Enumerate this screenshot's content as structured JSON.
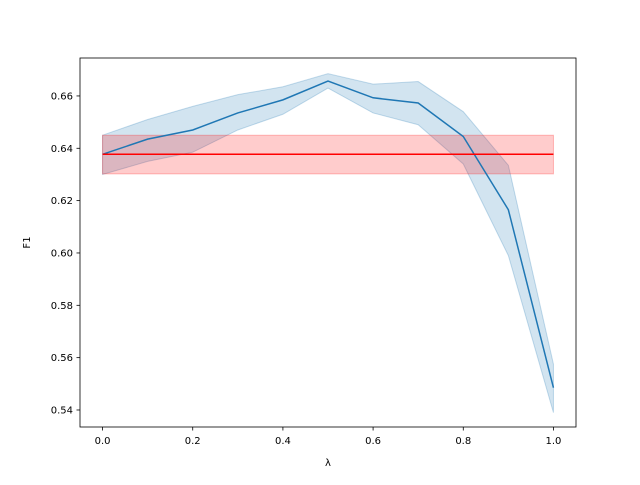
{
  "chart_data": {
    "type": "line",
    "xlabel": "λ",
    "ylabel": "F1",
    "xlim": [
      -0.05,
      1.05
    ],
    "ylim": [
      0.5335,
      0.6745
    ],
    "x_ticks": [
      0.0,
      0.2,
      0.4,
      0.6,
      0.8,
      1.0
    ],
    "y_ticks": [
      0.54,
      0.56,
      0.58,
      0.6,
      0.62,
      0.64,
      0.66
    ],
    "x_tick_labels": [
      "0.0",
      "0.2",
      "0.4",
      "0.6",
      "0.8",
      "1.0"
    ],
    "y_tick_labels": [
      "0.54",
      "0.56",
      "0.58",
      "0.60",
      "0.62",
      "0.64",
      "0.66"
    ],
    "grid": false,
    "legend": "none",
    "series": [
      {
        "color": "#1f77b4",
        "x": [
          0.0,
          0.1,
          0.2,
          0.3,
          0.4,
          0.5,
          0.6,
          0.7,
          0.8,
          0.9,
          1.0
        ],
        "y": [
          0.6377,
          0.6435,
          0.647,
          0.6535,
          0.6585,
          0.6657,
          0.6593,
          0.6573,
          0.6445,
          0.6165,
          0.5485
        ],
        "band_lower": [
          0.63,
          0.635,
          0.6385,
          0.647,
          0.653,
          0.663,
          0.6535,
          0.649,
          0.634,
          0.599,
          0.539
        ],
        "band_upper": [
          0.645,
          0.651,
          0.656,
          0.6605,
          0.6635,
          0.6685,
          0.6645,
          0.6655,
          0.654,
          0.6335,
          0.5575
        ]
      },
      {
        "color": "#ff0000",
        "x": [
          0.0,
          1.0
        ],
        "y": [
          0.6377,
          0.6377
        ],
        "band_lower": [
          0.6302,
          0.6302
        ],
        "band_upper": [
          0.645,
          0.645
        ]
      }
    ]
  }
}
